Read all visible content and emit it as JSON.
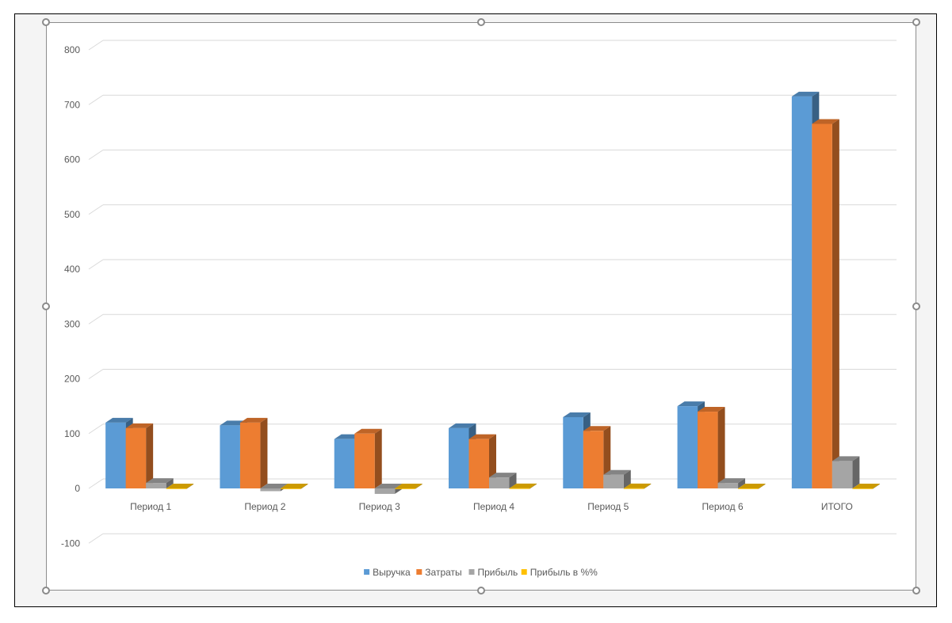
{
  "chart_data": {
    "type": "bar",
    "title": "",
    "xlabel": "",
    "ylabel": "",
    "categories": [
      "Период 1",
      "Период 2",
      "Период 3",
      "Период 4",
      "Период 5",
      "Период 6",
      "ИТОГО"
    ],
    "series": [
      {
        "name": "Выручка",
        "color": "#5b9bd5",
        "values": [
          120,
          115,
          90,
          110,
          130,
          150,
          715
        ]
      },
      {
        "name": "Затраты",
        "color": "#ed7d31",
        "values": [
          110,
          120,
          100,
          90,
          105,
          140,
          665
        ]
      },
      {
        "name": "Прибыль",
        "color": "#a5a5a5",
        "values": [
          10,
          -5,
          -10,
          20,
          25,
          10,
          50
        ]
      },
      {
        "name": "Прибыль в %%",
        "color": "#ffc000",
        "values": [
          0.08,
          -0.04,
          -0.1,
          0.18,
          0.19,
          0.07,
          0.07
        ]
      }
    ],
    "ylim": [
      -100,
      800
    ],
    "yticks": [
      -100,
      0,
      100,
      200,
      300,
      400,
      500,
      600,
      700,
      800
    ],
    "grid": true,
    "legend": "bottom",
    "style": "3d-column"
  }
}
